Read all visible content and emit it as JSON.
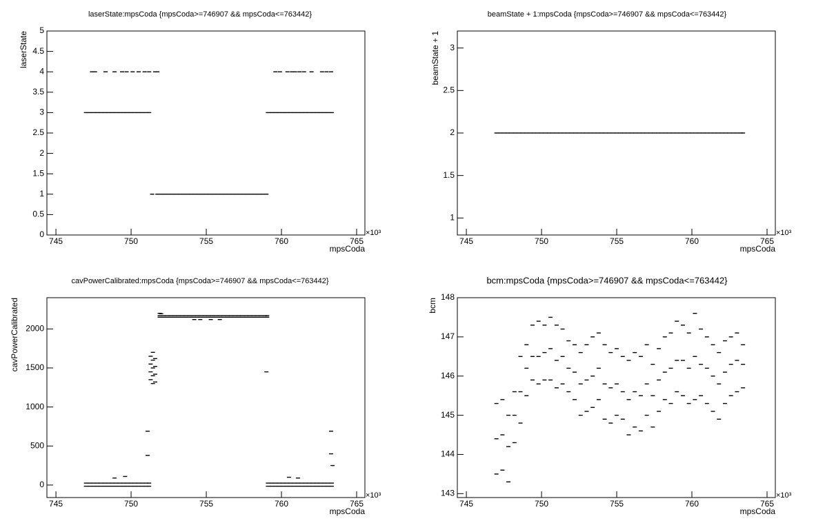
{
  "chart_data": [
    {
      "type": "scatter",
      "title": "laserState:mpsCoda {mpsCoda>=746907 && mpsCoda<=763442}",
      "x_label": "mpsCoda",
      "y_label": "laserState",
      "x_multiplier": "×10³",
      "color": "#000000",
      "xlim": [
        744.4,
        765.55
      ],
      "xticks": [
        745,
        750,
        755,
        760,
        765
      ],
      "ylim": [
        0,
        5
      ],
      "yticks": [
        0,
        0.5,
        1,
        1.5,
        2,
        2.5,
        3,
        3.5,
        4,
        4.5,
        5
      ],
      "x": [
        747,
        747.25,
        747.5,
        747.75,
        748,
        748.25,
        748.5,
        748.75,
        749,
        749.25,
        749.5,
        749.75,
        750,
        750.25,
        750.5,
        750.75,
        751,
        751.2,
        751.4,
        751.75,
        752,
        752.25,
        752.5,
        752.75,
        753,
        753.25,
        753.5,
        753.75,
        754,
        754.25,
        754.5,
        754.75,
        755,
        755.25,
        755.5,
        755.75,
        756,
        756.25,
        756.5,
        756.75,
        757,
        757.25,
        757.5,
        757.75,
        758,
        758.25,
        758.5,
        758.75,
        759,
        759.1,
        759.35,
        759.6,
        759.85,
        760.1,
        760.35,
        760.6,
        760.85,
        761.1,
        761.35,
        761.6,
        761.85,
        762.1,
        762.35,
        762.6,
        762.85,
        763.1,
        763.35,
        747.4,
        747.6,
        748.3,
        748.9,
        749.4,
        749.7,
        750.1,
        750.5,
        750.9,
        751.2,
        751.6,
        751.75,
        759.6,
        759.9,
        760.4,
        760.7,
        760.9,
        761.2,
        761.5,
        762,
        762.7,
        763,
        763.3
      ],
      "values": [
        3,
        3,
        3,
        3,
        3,
        3,
        3,
        3,
        3,
        3,
        3,
        3,
        3,
        3,
        3,
        3,
        3,
        3,
        1,
        1,
        1,
        1,
        1,
        1,
        1,
        1,
        1,
        1,
        1,
        1,
        1,
        1,
        1,
        1,
        1,
        1,
        1,
        1,
        1,
        1,
        1,
        1,
        1,
        1,
        1,
        1,
        1,
        1,
        1,
        3,
        3,
        3,
        3,
        3,
        3,
        3,
        3,
        3,
        3,
        3,
        3,
        3,
        3,
        3,
        3,
        3,
        3,
        4,
        4,
        4,
        4,
        4,
        4,
        4,
        4,
        4,
        4,
        4,
        4,
        4,
        4,
        4,
        4,
        4,
        4,
        4,
        4,
        4,
        4,
        4
      ]
    },
    {
      "type": "scatter",
      "title": "beamState + 1:mpsCoda {mpsCoda>=746907 && mpsCoda<=763442}",
      "x_label": "mpsCoda",
      "y_label": "beamState + 1",
      "x_multiplier": "×10³",
      "color": "#000000",
      "xlim": [
        744.4,
        765.55
      ],
      "xticks": [
        745,
        750,
        755,
        760,
        765
      ],
      "ylim": [
        0.8,
        3.2
      ],
      "yticks": [
        1,
        1.5,
        2,
        2.5,
        3
      ],
      "x": [
        747,
        747.25,
        747.5,
        747.75,
        748,
        748.25,
        748.5,
        748.75,
        749,
        749.25,
        749.5,
        749.75,
        750,
        750.25,
        750.5,
        750.75,
        751,
        751.25,
        751.5,
        751.75,
        752,
        752.25,
        752.5,
        752.75,
        753,
        753.25,
        753.5,
        753.75,
        754,
        754.25,
        754.5,
        754.75,
        755,
        755.25,
        755.5,
        755.75,
        756,
        756.25,
        756.5,
        756.75,
        757,
        757.25,
        757.5,
        757.75,
        758,
        758.25,
        758.5,
        758.75,
        759,
        759.25,
        759.5,
        759.75,
        760,
        760.25,
        760.5,
        760.75,
        761,
        761.25,
        761.5,
        761.75,
        762,
        762.25,
        762.5,
        762.75,
        763,
        763.25,
        763.4
      ],
      "values": [
        2,
        2,
        2,
        2,
        2,
        2,
        2,
        2,
        2,
        2,
        2,
        2,
        2,
        2,
        2,
        2,
        2,
        2,
        2,
        2,
        2,
        2,
        2,
        2,
        2,
        2,
        2,
        2,
        2,
        2,
        2,
        2,
        2,
        2,
        2,
        2,
        2,
        2,
        2,
        2,
        2,
        2,
        2,
        2,
        2,
        2,
        2,
        2,
        2,
        2,
        2,
        2,
        2,
        2,
        2,
        2,
        2,
        2,
        2,
        2,
        2,
        2,
        2,
        2,
        2,
        2,
        2
      ]
    },
    {
      "type": "scatter",
      "title": "cavPowerCalibrated:mpsCoda {mpsCoda>=746907 && mpsCoda<=763442}",
      "x_label": "mpsCoda",
      "y_label": "cavPowerCalibrated",
      "x_multiplier": "×10³",
      "color": "#000000",
      "xlim": [
        744.4,
        765.55
      ],
      "xticks": [
        745,
        750,
        755,
        760,
        765
      ],
      "ylim": [
        -160,
        2400
      ],
      "yticks": [
        0,
        500,
        1000,
        1500,
        2000
      ],
      "x": [
        747,
        747.25,
        747.5,
        747.75,
        748,
        748.25,
        748.5,
        748.75,
        749,
        749.25,
        749.5,
        749.75,
        750,
        750.25,
        750.5,
        750.75,
        751,
        751.2,
        759.1,
        759.35,
        759.6,
        759.85,
        760.1,
        760.35,
        760.6,
        760.85,
        761.1,
        761.35,
        761.6,
        761.85,
        762.1,
        762.35,
        762.6,
        762.85,
        763.1,
        763.35,
        747,
        747.25,
        747.5,
        747.75,
        748,
        748.25,
        748.5,
        748.75,
        749,
        749.25,
        749.5,
        749.75,
        750,
        750.25,
        750.5,
        750.75,
        751,
        751.2,
        759.1,
        759.35,
        759.6,
        759.85,
        760.1,
        760.35,
        760.6,
        760.85,
        761.1,
        761.35,
        761.6,
        761.85,
        762.1,
        762.35,
        762.6,
        762.85,
        763.1,
        763.35,
        751.9,
        752.15,
        752.4,
        752.65,
        752.9,
        753.15,
        753.4,
        753.65,
        753.9,
        754.15,
        754.4,
        754.65,
        754.9,
        755.15,
        755.4,
        755.65,
        755.9,
        756.15,
        756.4,
        756.65,
        756.9,
        757.15,
        757.4,
        757.65,
        757.9,
        758.15,
        758.4,
        758.65,
        758.9,
        759.05,
        751.9,
        752.15,
        752.4,
        752.65,
        752.9,
        753.15,
        753.4,
        753.65,
        753.9,
        754.15,
        754.4,
        754.65,
        754.9,
        755.15,
        755.4,
        755.65,
        755.9,
        756.15,
        756.4,
        756.65,
        756.9,
        757.15,
        757.4,
        757.65,
        757.9,
        758.15,
        758.4,
        758.65,
        758.9,
        759.05,
        751.3,
        751.3,
        751.3,
        751.3,
        751.45,
        751.45,
        751.45,
        751.45,
        751.45,
        751.6,
        751.6,
        751.6,
        751.6,
        751.1,
        751.1,
        759,
        763.3,
        763.3,
        763.4,
        754.2,
        754.6,
        755.3,
        755.9,
        752,
        748.9,
        749.6,
        760.5,
        761.1,
        751.9
      ],
      "values": [
        25,
        25,
        25,
        25,
        25,
        25,
        25,
        25,
        25,
        25,
        25,
        25,
        25,
        25,
        25,
        25,
        25,
        25,
        25,
        25,
        25,
        25,
        25,
        25,
        25,
        25,
        25,
        25,
        25,
        25,
        25,
        25,
        25,
        25,
        25,
        25,
        -15,
        -15,
        -15,
        -15,
        -15,
        -15,
        -15,
        -15,
        -15,
        -15,
        -15,
        -15,
        -15,
        -15,
        -15,
        -15,
        -15,
        -15,
        -15,
        -15,
        -15,
        -15,
        -15,
        -15,
        -15,
        -15,
        -15,
        -15,
        -15,
        -15,
        -15,
        -15,
        -15,
        -15,
        -15,
        -15,
        2170,
        2170,
        2170,
        2170,
        2170,
        2170,
        2170,
        2170,
        2170,
        2170,
        2170,
        2170,
        2170,
        2170,
        2170,
        2170,
        2170,
        2170,
        2170,
        2170,
        2170,
        2170,
        2170,
        2170,
        2170,
        2170,
        2170,
        2170,
        2170,
        2170,
        2150,
        2150,
        2150,
        2150,
        2150,
        2150,
        2150,
        2150,
        2150,
        2150,
        2150,
        2150,
        2150,
        2150,
        2150,
        2150,
        2150,
        2150,
        2150,
        2150,
        2150,
        2150,
        2150,
        2150,
        2150,
        2150,
        2150,
        2150,
        2150,
        2150,
        1350,
        1450,
        1550,
        1650,
        1300,
        1400,
        1500,
        1600,
        1700,
        1320,
        1420,
        1520,
        1620,
        380,
        690,
        1450,
        690,
        400,
        250,
        2120,
        2120,
        2120,
        2120,
        2195,
        90,
        110,
        100,
        90,
        2200
      ]
    },
    {
      "type": "scatter",
      "title": "bcm:mpsCoda {mpsCoda>=746907 && mpsCoda<=763442}",
      "x_label": "mpsCoda",
      "y_label": "bcm",
      "x_multiplier": "×10³",
      "color": "#000000",
      "xlim": [
        744.4,
        765.55
      ],
      "xticks": [
        745,
        750,
        755,
        760,
        765
      ],
      "ylim": [
        142.9,
        148
      ],
      "yticks": [
        143,
        144,
        145,
        146,
        147,
        148
      ],
      "x": [
        747,
        747.4,
        747.8,
        748.2,
        748.6,
        749,
        749.4,
        749.8,
        750.2,
        750.6,
        751,
        751.4,
        751.8,
        752.2,
        752.6,
        753,
        753.4,
        753.8,
        754.2,
        754.6,
        755,
        755.4,
        755.8,
        756.2,
        756.6,
        757,
        757.4,
        757.8,
        758.2,
        758.6,
        759,
        759.4,
        759.8,
        760.2,
        760.6,
        761,
        761.4,
        761.8,
        762.2,
        762.6,
        763,
        763.4,
        747,
        747.4,
        747.8,
        748.2,
        748.6,
        749,
        749.4,
        749.8,
        750.2,
        750.6,
        751,
        751.4,
        751.8,
        752.2,
        752.6,
        753,
        753.4,
        753.8,
        754.2,
        754.6,
        755,
        755.4,
        755.8,
        756.2,
        756.6,
        757,
        757.4,
        757.8,
        758.2,
        758.6,
        759,
        759.4,
        759.8,
        760.2,
        760.6,
        761,
        761.4,
        761.8,
        762.2,
        762.6,
        763,
        763.4,
        747,
        747.4,
        747.8,
        748.2,
        748.6,
        749,
        749.4,
        749.8,
        750.2,
        750.6,
        751,
        751.4,
        751.8,
        752.2,
        752.6,
        753,
        753.4,
        753.8,
        754.2,
        754.6,
        755,
        755.4,
        755.8,
        756.2,
        756.6,
        757,
        757.4,
        757.8,
        758.2,
        758.6,
        759,
        759.4,
        759.8,
        760.2,
        760.6,
        761,
        761.4,
        761.8,
        762.2,
        762.6,
        763,
        763.4
      ],
      "values": [
        143.5,
        143.6,
        143.3,
        144.3,
        144.8,
        145.5,
        145.9,
        145.8,
        145.9,
        145.9,
        145.7,
        145.8,
        145.6,
        145.4,
        145,
        145.1,
        145.2,
        145.4,
        144.9,
        144.8,
        145,
        144.9,
        144.5,
        144.7,
        144.6,
        145,
        144.7,
        145.1,
        145.4,
        145.3,
        145.6,
        145.5,
        145.3,
        145.4,
        145.5,
        145.3,
        145.1,
        144.9,
        145.3,
        145.5,
        145.6,
        145.7,
        144.4,
        144.5,
        144.2,
        145,
        145.6,
        146.2,
        146.5,
        146.5,
        146.6,
        146.7,
        146.4,
        146.5,
        146.2,
        146.1,
        145.8,
        145.9,
        146,
        146.2,
        145.8,
        145.7,
        145.8,
        145.6,
        145.4,
        145.6,
        145.5,
        145.8,
        145.5,
        145.9,
        146.1,
        146.2,
        146.4,
        146.4,
        146.2,
        146.5,
        146.3,
        146.2,
        146,
        145.8,
        146.1,
        146.3,
        146.4,
        146.3,
        145.3,
        145.4,
        145,
        145.6,
        146.5,
        146.8,
        147.3,
        147.4,
        147.3,
        147.5,
        147.3,
        147.2,
        146.9,
        146.8,
        146.6,
        146.8,
        147,
        147.1,
        146.8,
        146.6,
        146.7,
        146.5,
        146.4,
        146.6,
        146.5,
        146.8,
        146.3,
        146.7,
        147,
        147.1,
        147.4,
        147.3,
        147.1,
        147.6,
        147.2,
        147,
        146.8,
        146.6,
        146.9,
        147,
        147.1,
        146.8
      ]
    }
  ]
}
